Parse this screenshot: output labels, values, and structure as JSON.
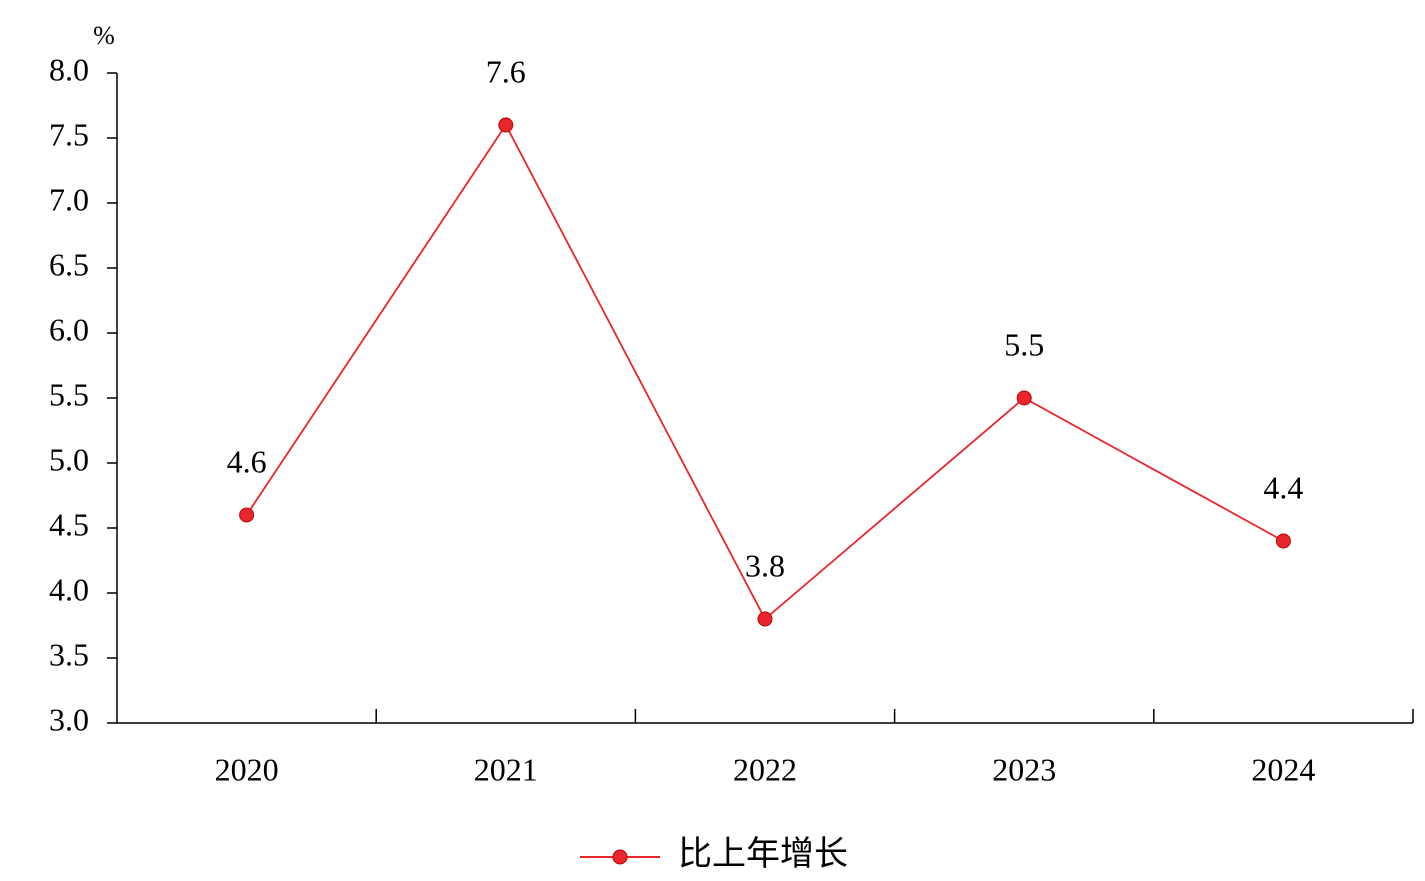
{
  "chart_data": {
    "type": "line",
    "ylabel": "%",
    "categories": [
      "2020",
      "2021",
      "2022",
      "2023",
      "2024"
    ],
    "series": [
      {
        "name": "比上年增长",
        "color": "#e8262b",
        "values": [
          4.6,
          7.6,
          3.8,
          5.5,
          4.4
        ]
      }
    ],
    "ylim": [
      3,
      8
    ],
    "yticks": [
      {
        "value": 3,
        "label": "3.0"
      },
      3.5,
      {
        "value": 4,
        "label": "4.0"
      },
      4.5,
      {
        "value": 5,
        "label": "5.0"
      },
      5.5,
      {
        "value": 6,
        "label": "6.0"
      },
      6.5,
      {
        "value": 7,
        "label": "7.0"
      },
      7.5,
      {
        "value": 8,
        "label": "8.0"
      }
    ],
    "legend": "bottom"
  }
}
